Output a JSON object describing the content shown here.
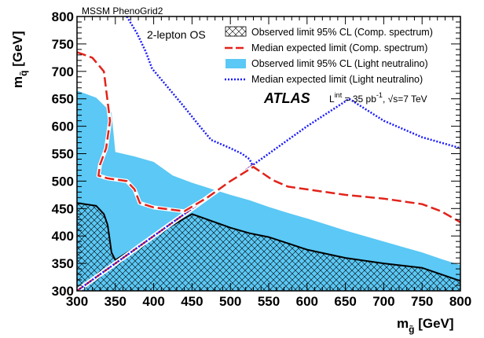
{
  "chart_data": {
    "type": "area",
    "xlim": [
      300,
      800
    ],
    "ylim": [
      300,
      800
    ],
    "x_ticks": [
      "300",
      "350",
      "400",
      "450",
      "500",
      "550",
      "600",
      "650",
      "700",
      "750",
      "800"
    ],
    "y_ticks": [
      "300",
      "350",
      "400",
      "450",
      "500",
      "550",
      "600",
      "650",
      "700",
      "750",
      "800"
    ],
    "x_axis_label": {
      "main": "m",
      "sub": "g̃",
      "unit": " [GeV]"
    },
    "y_axis_label": {
      "main": "m",
      "sub": "q̃",
      "unit": " [GeV]"
    },
    "top_left_label": "MSSM PhenoGrid2",
    "channel_label": "2-lepton OS",
    "experiment": "ATLAS",
    "lumi": {
      "L": "L",
      "sup": "int",
      "rest": " = 35 pb",
      "sup2": "-1",
      "sep": ", ",
      "sqrt": "√s=7 TeV"
    },
    "legend_position": "top-right",
    "series": [
      {
        "name": "Observed limit 95% CL (Light neutralino)",
        "kind": "filled_area",
        "color": "#5bc8f5",
        "x": [
          300,
          325,
          345,
          350,
          375,
          400,
          425,
          450,
          475,
          500,
          525,
          550,
          575,
          600,
          625,
          650,
          675,
          700,
          725,
          750,
          775,
          800
        ],
        "y": [
          665,
          652,
          625,
          553,
          545,
          535,
          510,
          497,
          486,
          475,
          465,
          453,
          442,
          432,
          421,
          410,
          400,
          390,
          380,
          370,
          358,
          347
        ]
      },
      {
        "name": "Observed limit 95% CL (Comp. spectrum)",
        "kind": "hatched_area",
        "color": "#000000",
        "x": [
          300,
          325,
          335,
          340,
          343,
          345,
          350,
          400,
          450,
          500,
          525,
          550,
          600,
          650,
          700,
          750,
          800
        ],
        "y": [
          460,
          455,
          440,
          420,
          390,
          370,
          356,
          400,
          440,
          415,
          405,
          398,
          375,
          360,
          350,
          342,
          318
        ]
      },
      {
        "name": "Median expected limit (Comp. spectrum)",
        "kind": "line",
        "color": "#e2231a",
        "x": [
          300,
          320,
          335,
          343,
          338,
          330,
          328,
          340,
          350,
          365,
          375,
          382,
          400,
          440,
          470,
          500,
          530,
          555,
          575,
          600,
          650,
          700,
          750,
          775,
          800
        ],
        "y": [
          735,
          725,
          700,
          610,
          560,
          530,
          510,
          505,
          503,
          500,
          485,
          460,
          452,
          445,
          470,
          500,
          526,
          502,
          490,
          485,
          475,
          468,
          458,
          445,
          425
        ]
      },
      {
        "name": "Median expected limit (Light neutralino)",
        "kind": "line",
        "color": "#1a1aff",
        "x": [
          365,
          378,
          390,
          398,
          410,
          425,
          440,
          460,
          475,
          500,
          515,
          525,
          530
        ],
        "y": [
          800,
          770,
          735,
          705,
          685,
          660,
          635,
          600,
          575,
          560,
          550,
          540,
          525
        ]
      },
      {
        "name": "",
        "kind": "line",
        "color": "#1a1aff",
        "x": [
          300,
          350,
          400,
          450,
          500,
          550,
          600,
          655,
          700,
          750,
          800
        ],
        "y": [
          300,
          350,
          400,
          450,
          500,
          550,
          600,
          650,
          610,
          580,
          560
        ]
      },
      {
        "name": "",
        "kind": "line",
        "color": "#e2231a",
        "x": [
          300,
          530
        ],
        "y": [
          300,
          530
        ]
      }
    ]
  }
}
